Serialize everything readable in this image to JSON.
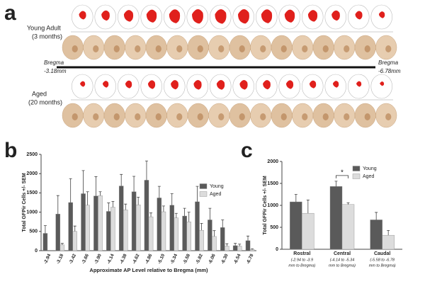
{
  "panel_labels": [
    "a",
    "b",
    "c"
  ],
  "panel_a": {
    "rows": [
      [
        "Young Adult",
        "(3 months)"
      ],
      [
        "Aged",
        "(20 months)"
      ]
    ],
    "bregma_left": [
      "Bregma",
      "-3.18mm"
    ],
    "bregma_right": [
      "Bregma",
      "-6.78mm"
    ]
  },
  "chart_data": [
    {
      "type": "bar",
      "y_label": "Total GFPir Cells +/- SEM",
      "x_label": "Approximate AP Level relative to Bregma (mm)",
      "categories": [
        "-2.94",
        "-3.18",
        "-3.42",
        "-3.66",
        "-3.90",
        "-4.14",
        "-4.38",
        "-4.62",
        "-4.86",
        "-5.10",
        "-5.34",
        "-5.58",
        "-5.82",
        "-6.06",
        "-6.30",
        "-6.54",
        "-6.78"
      ],
      "series": [
        {
          "name": "Young",
          "color": "#5a5a5a",
          "values": [
            450,
            950,
            1250,
            1480,
            1420,
            1020,
            1680,
            1530,
            1830,
            1370,
            1180,
            900,
            1270,
            800,
            600,
            130,
            260
          ],
          "errors": [
            200,
            480,
            620,
            600,
            500,
            220,
            300,
            400,
            500,
            300,
            300,
            200,
            400,
            300,
            200,
            60,
            120
          ]
        },
        {
          "name": "Aged",
          "color": "#dcdcdc",
          "values": [
            null,
            150,
            500,
            1180,
            1430,
            1130,
            1060,
            1190,
            880,
            1010,
            850,
            750,
            530,
            370,
            120,
            120,
            30
          ],
          "errors": [
            null,
            40,
            140,
            350,
            100,
            150,
            150,
            200,
            100,
            150,
            120,
            250,
            180,
            150,
            60,
            50,
            20
          ]
        }
      ],
      "ylim": [
        0,
        2500
      ],
      "yticks": [
        0,
        500,
        1000,
        1500,
        2000,
        2500
      ],
      "legend": "upper-right"
    },
    {
      "type": "bar",
      "y_label": "Total GFPir Cells +/- SEM",
      "categories": [
        "Rostral",
        "Central",
        "Caudal"
      ],
      "sublabels": [
        [
          "(-2.94 to -3.9",
          "mm to Bregma)"
        ],
        [
          "(-4.14 to -5.34",
          "mm to Bregma)"
        ],
        [
          "(-5.58 to -6.78",
          "mm to Bregma)"
        ]
      ],
      "series": [
        {
          "name": "Young",
          "color": "#5a5a5a",
          "values": [
            1080,
            1430,
            670
          ],
          "errors": [
            170,
            120,
            170
          ]
        },
        {
          "name": "Aged",
          "color": "#dcdcdc",
          "values": [
            820,
            1020,
            320
          ],
          "errors": [
            300,
            40,
            110
          ]
        }
      ],
      "ylim": [
        0,
        2000
      ],
      "yticks": [
        0,
        500,
        1000,
        1500,
        2000
      ],
      "legend": "upper-right",
      "annotation": "*"
    }
  ]
}
